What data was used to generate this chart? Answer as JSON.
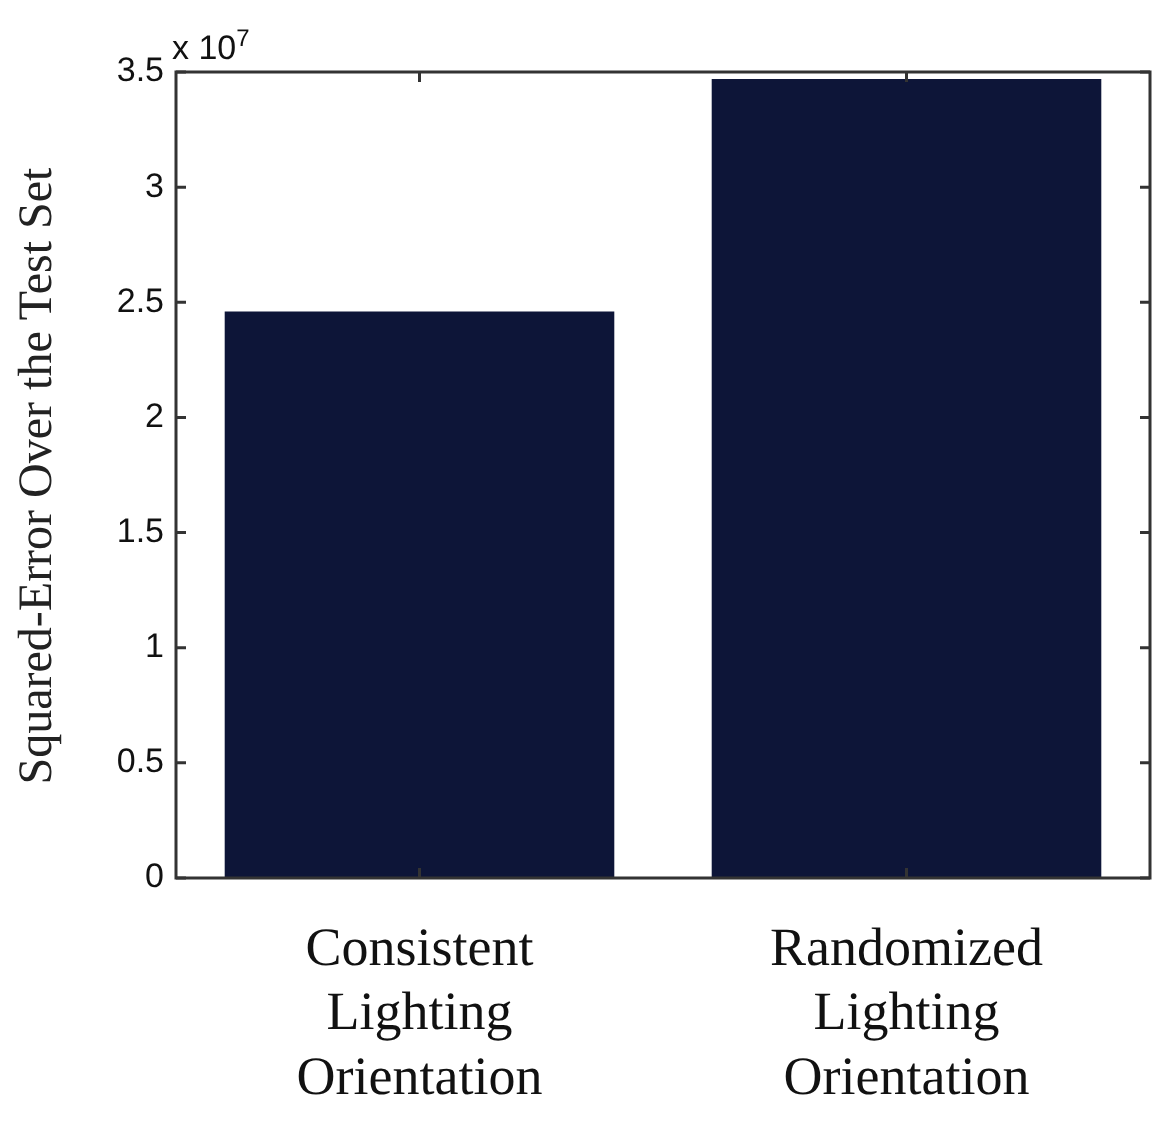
{
  "chart_data": {
    "type": "bar",
    "ylabel": "Squared-Error Over the Test Set",
    "categories": [
      "Consistent Lighting Orientation",
      "Randomized Lighting Orientation"
    ],
    "values": [
      2.46,
      3.47
    ],
    "color": "#0d1538",
    "ylim": [
      0,
      3.5
    ],
    "yticks": [
      0,
      0.5,
      1,
      1.5,
      2,
      2.5,
      3,
      3.5
    ],
    "grid": false,
    "legend": false,
    "annotations": [
      "x 10$^{7}$"
    ]
  }
}
